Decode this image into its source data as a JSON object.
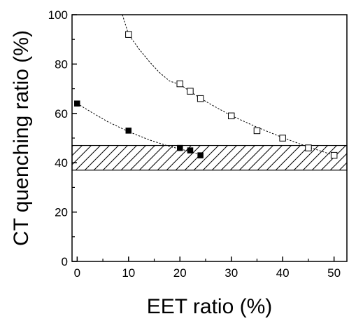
{
  "chart_data": {
    "type": "scatter",
    "xlabel": "EET ratio (%)",
    "ylabel": "CT quenching ratio (%)",
    "xlim": [
      -1,
      52.5
    ],
    "ylim": [
      0,
      100
    ],
    "xticks": [
      0,
      10,
      20,
      30,
      40,
      50
    ],
    "yticks": [
      0,
      20,
      40,
      60,
      80,
      100
    ],
    "grid": false,
    "band": {
      "y_min": 37,
      "y_max": 47,
      "fill": "hatched"
    },
    "series": [
      {
        "marker": "filled-square",
        "color": "#000000",
        "x": [
          0,
          10,
          20,
          22,
          24
        ],
        "y": [
          64,
          53,
          46,
          45,
          43
        ],
        "fit_curve": {
          "x": [
            0,
            3,
            6,
            10,
            14,
            18,
            20,
            22,
            24
          ],
          "y": [
            64,
            60.2,
            56.6,
            52.6,
            49.3,
            46.6,
            45.6,
            44.5,
            43.2
          ]
        }
      },
      {
        "marker": "open-square",
        "color": "#000000",
        "x": [
          10,
          20,
          22,
          24,
          30,
          35,
          40,
          45,
          50
        ],
        "y": [
          92,
          72,
          69,
          66,
          59,
          53,
          50,
          46,
          43
        ],
        "fit_curve": {
          "x": [
            8.8,
            10,
            12,
            14,
            16,
            18,
            20,
            22,
            24,
            27,
            30,
            35,
            40,
            45,
            50
          ],
          "y": [
            100,
            92,
            86.2,
            81.1,
            76.6,
            73.1,
            71.7,
            68.9,
            66.1,
            62.5,
            59.1,
            54.4,
            50.2,
            46.4,
            43
          ]
        }
      }
    ]
  }
}
